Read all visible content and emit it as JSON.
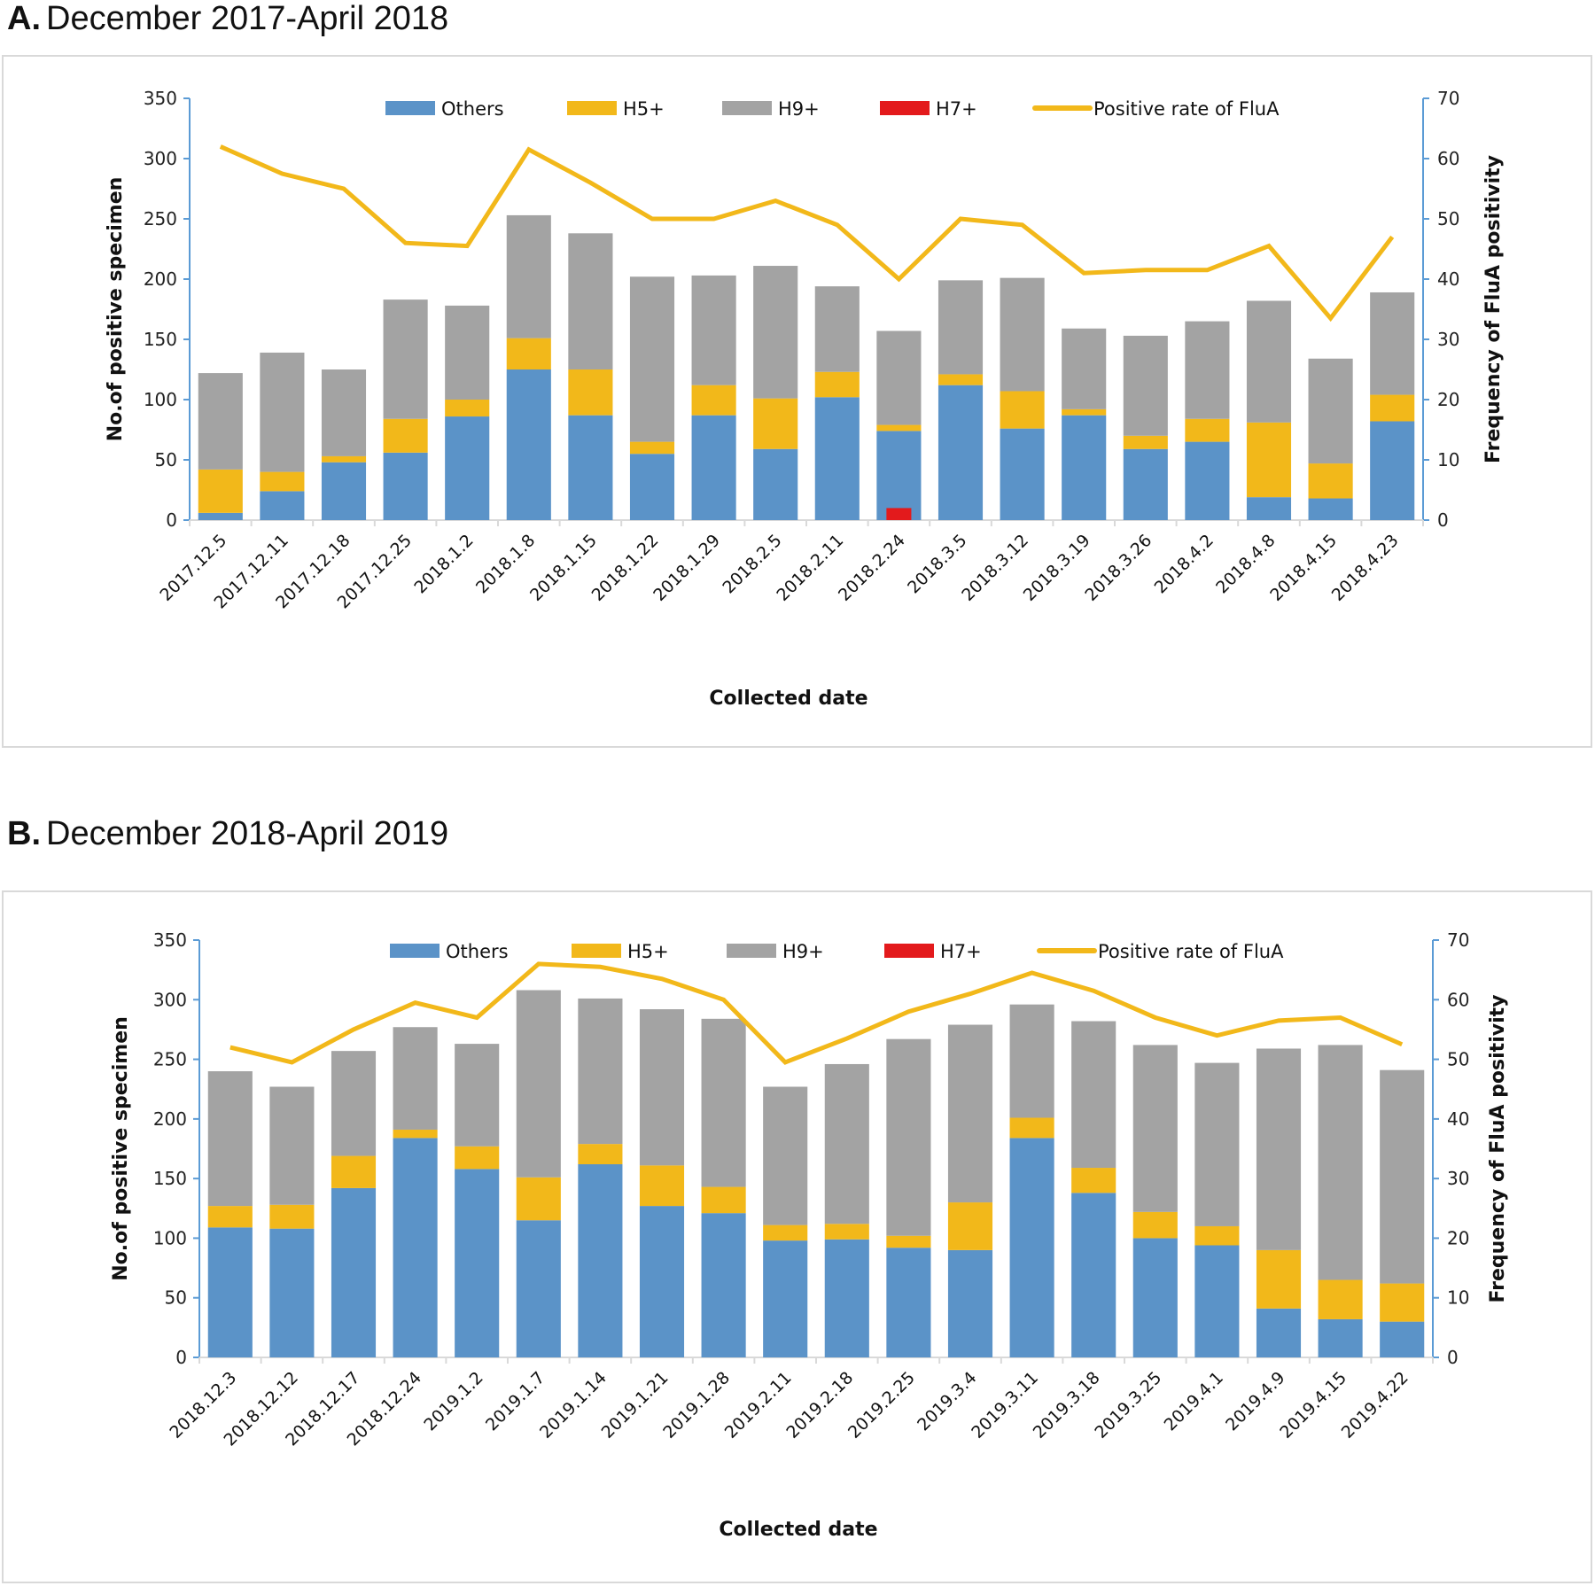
{
  "colors": {
    "others": "#5b93c8",
    "h5": "#f2b81a",
    "h9": "#a3a3a3",
    "h7": "#e31a1c",
    "rate": "#f2b81a",
    "axis": "#5b9bd5"
  },
  "chart_data": [
    {
      "type": "bar",
      "stacked": true,
      "panel_letter": "A.",
      "title": "December 2017-April 2018",
      "xlabel": "Collected date",
      "ylabel": "No.of positive specimen",
      "y2label": "Frequency of FluA positivity",
      "ylim": [
        0,
        350
      ],
      "y2lim": [
        0,
        70
      ],
      "yticks": [
        "0",
        "50",
        "100",
        "150",
        "200",
        "250",
        "300",
        "350"
      ],
      "y2ticks": [
        "0",
        "10",
        "20",
        "30",
        "40",
        "50",
        "60",
        "70"
      ],
      "legend": [
        "Others",
        "H5+",
        "H9+",
        "H7+",
        "Positive rate of FluA"
      ],
      "legend_position": "top",
      "grid": false,
      "categories": [
        "2017.12.5",
        "2017.12.11",
        "2017.12.18",
        "2017.12.25",
        "2018.1.2",
        "2018.1.8",
        "2018.1.15",
        "2018.1.22",
        "2018.1.29",
        "2018.2.5",
        "2018.2.11",
        "2018.2.24",
        "2018.3.5",
        "2018.3.12",
        "2018.3.19",
        "2018.3.26",
        "2018.4.2",
        "2018.4.8",
        "2018.4.15",
        "2018.4.23"
      ],
      "series": [
        {
          "name": "H7+",
          "axis": "left",
          "values": [
            0,
            0,
            0,
            0,
            0,
            0,
            0,
            0,
            0,
            0,
            0,
            10,
            0,
            0,
            0,
            0,
            0,
            0,
            0,
            0
          ]
        },
        {
          "name": "Others",
          "axis": "left",
          "values": [
            6,
            24,
            48,
            56,
            86,
            125,
            87,
            55,
            87,
            59,
            102,
            74,
            112,
            76,
            87,
            59,
            65,
            19,
            18,
            82
          ]
        },
        {
          "name": "H5+",
          "axis": "left",
          "values": [
            36,
            16,
            5,
            28,
            14,
            26,
            38,
            10,
            25,
            42,
            21,
            5,
            9,
            31,
            5,
            11,
            19,
            62,
            29,
            22
          ]
        },
        {
          "name": "H9+",
          "axis": "left",
          "values": [
            80,
            99,
            72,
            99,
            78,
            102,
            113,
            137,
            91,
            110,
            71,
            78,
            78,
            94,
            67,
            83,
            81,
            101,
            87,
            85
          ]
        },
        {
          "name": "Positive rate of FluA",
          "type": "line",
          "axis": "right",
          "values": [
            62,
            57.5,
            55,
            46,
            45.5,
            61.5,
            56,
            50,
            50,
            53,
            49,
            40,
            50,
            49,
            41,
            41.5,
            41.5,
            45.5,
            33.5,
            47
          ]
        }
      ]
    },
    {
      "type": "bar",
      "stacked": true,
      "panel_letter": "B.",
      "title": "December 2018-April 2019",
      "xlabel": "Collected date",
      "ylabel": "No.of positive specimen",
      "y2label": "Frequency of FluA positivity",
      "ylim": [
        0,
        350
      ],
      "y2lim": [
        0,
        70
      ],
      "yticks": [
        "0",
        "50",
        "100",
        "150",
        "200",
        "250",
        "300",
        "350"
      ],
      "y2ticks": [
        "0",
        "10",
        "20",
        "30",
        "40",
        "50",
        "60",
        "70"
      ],
      "legend": [
        "Others",
        "H5+",
        "H9+",
        "H7+",
        "Positive rate of FluA"
      ],
      "legend_position": "top",
      "grid": false,
      "categories": [
        "2018.12.3",
        "2018.12.12",
        "2018.12.17",
        "2018.12.24",
        "2019.1.2",
        "2019.1.7",
        "2019.1.14",
        "2019.1.21",
        "2019.1.28",
        "2019.2.11",
        "2019.2.18",
        "2019.2.25",
        "2019.3.4",
        "2019.3.11",
        "2019.3.18",
        "2019.3.25",
        "2019.4.1",
        "2019.4.9",
        "2019.4.15",
        "2019.4.22"
      ],
      "series": [
        {
          "name": "H7+",
          "axis": "left",
          "values": [
            0,
            0,
            0,
            0,
            0,
            0,
            0,
            0,
            0,
            0,
            0,
            0,
            0,
            0,
            0,
            0,
            0,
            0,
            0,
            0
          ]
        },
        {
          "name": "Others",
          "axis": "left",
          "values": [
            109,
            108,
            142,
            184,
            158,
            115,
            162,
            127,
            121,
            98,
            99,
            92,
            90,
            184,
            138,
            100,
            94,
            41,
            32,
            30
          ]
        },
        {
          "name": "H5+",
          "axis": "left",
          "values": [
            18,
            20,
            27,
            7,
            19,
            36,
            17,
            34,
            22,
            13,
            13,
            10,
            40,
            17,
            21,
            22,
            16,
            49,
            33,
            32
          ]
        },
        {
          "name": "H9+",
          "axis": "left",
          "values": [
            113,
            99,
            88,
            86,
            86,
            157,
            122,
            131,
            141,
            116,
            134,
            165,
            149,
            95,
            123,
            140,
            137,
            169,
            197,
            179
          ]
        },
        {
          "name": "Positive rate of FluA",
          "type": "line",
          "axis": "right",
          "values": [
            52,
            49.5,
            55,
            59.5,
            57,
            66,
            65.5,
            63.5,
            60,
            49.5,
            53.5,
            58,
            61,
            64.5,
            61.5,
            57,
            54,
            56.5,
            57,
            52.5
          ]
        }
      ]
    }
  ]
}
